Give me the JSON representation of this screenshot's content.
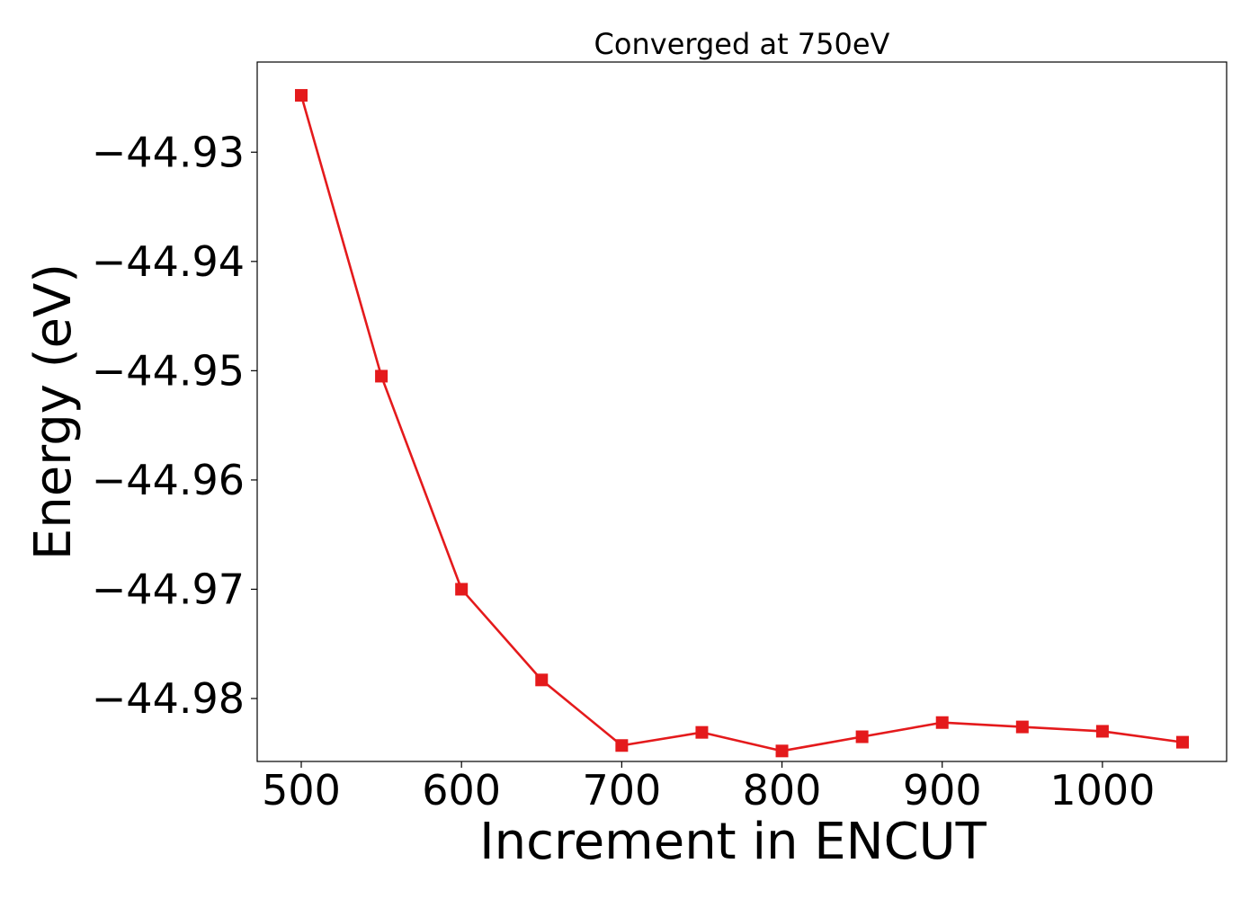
{
  "chart_data": {
    "type": "line",
    "title": "Converged at 750eV",
    "xlabel": "Increment in ENCUT",
    "ylabel": "Energy (eV)",
    "x": [
      500,
      550,
      600,
      650,
      700,
      750,
      800,
      850,
      900,
      950,
      1000,
      1050
    ],
    "series": [
      {
        "values": [
          -44.9248,
          -44.9505,
          -44.97,
          -44.9783,
          -44.9843,
          -44.9831,
          -44.9848,
          -44.9835,
          -44.9822,
          -44.9826,
          -44.983,
          -44.984
        ],
        "color": "#e41a1c",
        "marker": "square"
      }
    ],
    "xlim": [
      472.5,
      1077.5
    ],
    "ylim": [
      -44.98576,
      -44.92175
    ],
    "xticks": [
      500,
      600,
      700,
      800,
      900,
      1000
    ],
    "xtick_labels": [
      "500",
      "600",
      "700",
      "800",
      "900",
      "1000"
    ],
    "yticks": [
      -44.93,
      -44.94,
      -44.95,
      -44.96,
      -44.97,
      -44.98
    ],
    "ytick_labels": [
      "−44.93",
      "−44.94",
      "−44.95",
      "−44.96",
      "−44.97",
      "−44.98"
    ],
    "grid": false
  }
}
